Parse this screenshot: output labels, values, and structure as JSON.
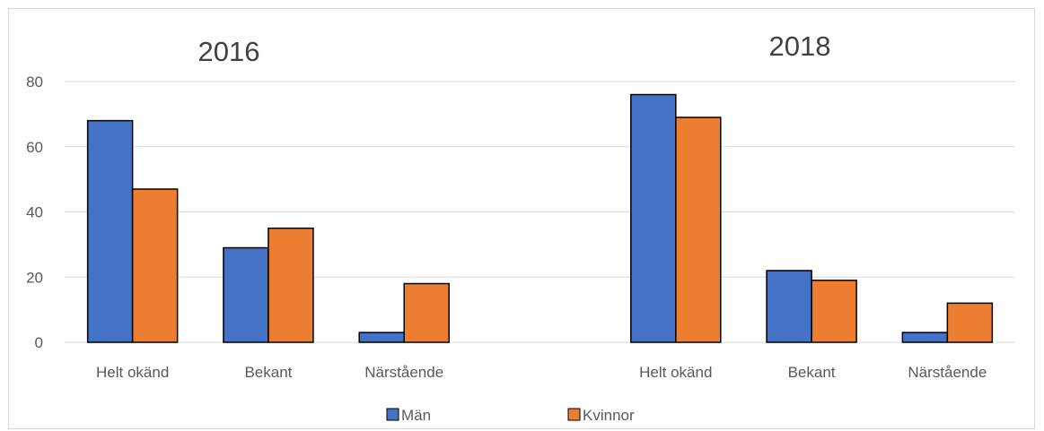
{
  "chart_data": {
    "type": "bar",
    "ylim": [
      0,
      80
    ],
    "yticks": [
      0,
      20,
      40,
      60,
      80
    ],
    "grid": true,
    "legend_position": "bottom",
    "series_names": [
      "Män",
      "Kvinnor"
    ],
    "colors": {
      "Män": "#4472c4",
      "Kvinnor": "#ed7d31",
      "grid": "#d9d9d9",
      "axis": "#d9d9d9"
    },
    "panels": [
      {
        "title": "2016",
        "categories": [
          "Helt okänd",
          "Bekant",
          "Närstående"
        ],
        "series": [
          {
            "name": "Män",
            "values": [
              68,
              29,
              3
            ]
          },
          {
            "name": "Kvinnor",
            "values": [
              47,
              35,
              18
            ]
          }
        ]
      },
      {
        "title": "2018",
        "categories": [
          "Helt okänd",
          "Bekant",
          "Närstående"
        ],
        "series": [
          {
            "name": "Män",
            "values": [
              76,
              22,
              3
            ]
          },
          {
            "name": "Kvinnor",
            "values": [
              69,
              19,
              12
            ]
          }
        ]
      }
    ]
  }
}
